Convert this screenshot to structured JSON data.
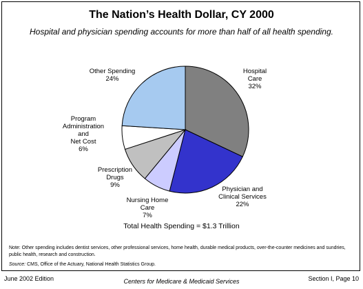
{
  "chart_data": {
    "type": "pie",
    "title": "The Nation’s Health Dollar, CY 2000",
    "subtitle": "Hospital and physician spending accounts for more than half of all health spending.",
    "slices": [
      {
        "name": "Hospital Care",
        "label_lines": [
          "Hospital",
          "Care",
          "32%"
        ],
        "value": 32,
        "color": "#808080"
      },
      {
        "name": "Physician and Clinical Services",
        "label_lines": [
          "Physician and",
          "Clinical Services",
          "22%"
        ],
        "value": 22,
        "color": "#3333cc"
      },
      {
        "name": "Nursing Home Care",
        "label_lines": [
          "Nursing Home",
          "Care",
          "7%"
        ],
        "value": 7,
        "color": "#ccccff"
      },
      {
        "name": "Prescription Drugs",
        "label_lines": [
          "Prescription",
          "Drugs",
          "9%"
        ],
        "value": 9,
        "color": "#c0c0c0"
      },
      {
        "name": "Program Administration and Net Cost",
        "label_lines": [
          "Program",
          "Administration",
          "and",
          "Net Cost",
          "6%"
        ],
        "value": 6,
        "color": "#ffffff"
      },
      {
        "name": "Other Spending",
        "label_lines": [
          "Other Spending",
          "24%"
        ],
        "value": 24,
        "color": "#a6caf0"
      }
    ],
    "total_label": "Total Health Spending = $1.3 Trillion"
  },
  "note": "Note: Other spending includes dentist services, other professional services, home health, durable medical products, over-the-counter medicines and sundries, public health, research and construction.",
  "source_label": "Source:",
  "source_text": " CMS, Office of the Actuary, National Health Statistics Group.",
  "footer": {
    "left": "June 2002 Edition",
    "center": "Centers for Medicare & Medicaid Services",
    "right": "Section I, Page 10"
  }
}
